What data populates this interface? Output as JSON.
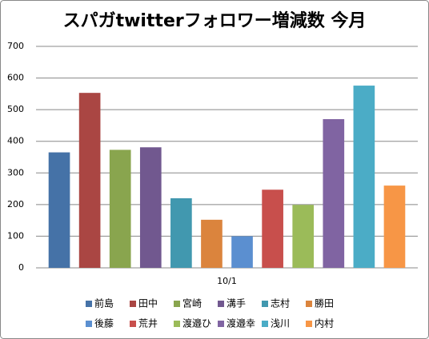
{
  "chart_data": {
    "type": "bar",
    "title": "スパガtwitterフォロワー増減数 今月",
    "categories": [
      "10/1"
    ],
    "series": [
      {
        "name": "前島",
        "color": "#4572a7",
        "values": [
          365
        ]
      },
      {
        "name": "田中",
        "color": "#aa4643",
        "values": [
          553
        ]
      },
      {
        "name": "宮崎",
        "color": "#89a54e",
        "values": [
          373
        ]
      },
      {
        "name": "溝手",
        "color": "#71588f",
        "values": [
          381
        ]
      },
      {
        "name": "志村",
        "color": "#4198af",
        "values": [
          220
        ]
      },
      {
        "name": "勝田",
        "color": "#db843d",
        "values": [
          152
        ]
      },
      {
        "name": "後藤",
        "color": "#5b8fd0",
        "values": [
          100
        ]
      },
      {
        "name": "荒井",
        "color": "#c84f4c",
        "values": [
          247
        ]
      },
      {
        "name": "渡邉ひ",
        "color": "#9bbb59",
        "values": [
          199
        ]
      },
      {
        "name": "渡邉幸",
        "color": "#8064a2",
        "values": [
          470
        ]
      },
      {
        "name": "浅川",
        "color": "#4bacc6",
        "values": [
          576
        ]
      },
      {
        "name": "内村",
        "color": "#f79646",
        "values": [
          260
        ]
      }
    ],
    "ylim": [
      0,
      700
    ],
    "yticks": [
      0,
      100,
      200,
      300,
      400,
      500,
      600,
      700
    ],
    "grid": true,
    "legend": "bottom"
  }
}
